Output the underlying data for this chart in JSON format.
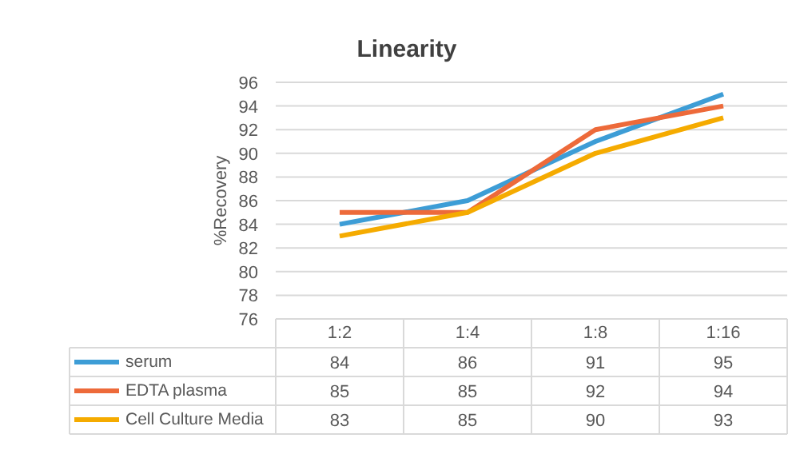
{
  "chart_data": {
    "type": "line",
    "title": "Linearity",
    "ylabel": "%Recovery",
    "categories": [
      "1:2",
      "1:4",
      "1:8",
      "1:16"
    ],
    "series": [
      {
        "name": "serum",
        "color": "#3d9dd6",
        "values": [
          84,
          86,
          91,
          95
        ]
      },
      {
        "name": "EDTA plasma",
        "color": "#ed6a3a",
        "values": [
          85,
          85,
          92,
          94
        ]
      },
      {
        "name": "Cell Culture Media",
        "color": "#f5ab00",
        "values": [
          83,
          85,
          90,
          93
        ]
      }
    ],
    "ylim": [
      76,
      96
    ],
    "yticks": [
      76,
      78,
      80,
      82,
      84,
      86,
      88,
      90,
      92,
      94,
      96
    ],
    "grid": "y",
    "legend": "bottom",
    "data_labels": true,
    "marker": "none",
    "line_style": "solid"
  }
}
